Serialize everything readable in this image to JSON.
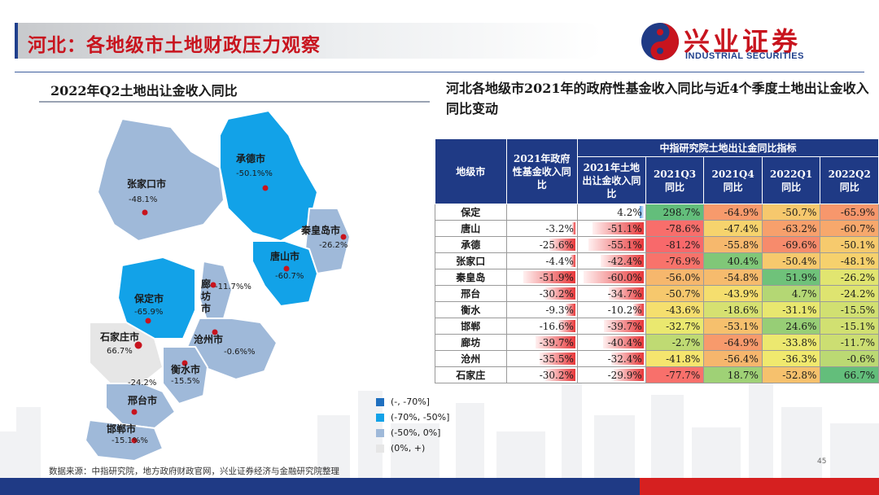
{
  "header": {
    "title": "河北：各地级市土地财政压力观察",
    "logo_cn": "兴业证券",
    "logo_en": "INDUSTRIAL SECURITIES"
  },
  "left": {
    "heading": "2022年Q2土地出让金收入同比",
    "map_regions": [
      {
        "name": "张家口市",
        "value": "-48.1%"
      },
      {
        "name": "承德市",
        "value": "-50.1%%"
      },
      {
        "name": "秦皇岛市",
        "value": "-26.2%"
      },
      {
        "name": "唐山市",
        "value": "-60.7%"
      },
      {
        "name": "廊坊市",
        "value": "-11.7%%"
      },
      {
        "name": "保定市",
        "value": "-65.9%"
      },
      {
        "name": "石家庄市",
        "value": "66.7%"
      },
      {
        "name": "沧州市",
        "value": "-0.6%%"
      },
      {
        "name": "衡水市",
        "value": "-15.5%"
      },
      {
        "name": "邢台市",
        "value": "-24.2%"
      },
      {
        "name": "邯郸市",
        "value": "-15.1%%"
      }
    ],
    "legend": [
      {
        "label": "(-, -70%]",
        "color": "#1f6fbf"
      },
      {
        "label": "(-70%, -50%]",
        "color": "#12a2e8"
      },
      {
        "label": "(-50%, 0%]",
        "color": "#9fb9d9"
      },
      {
        "label": "(0%, +)",
        "color": "#e6e6e6"
      }
    ]
  },
  "right": {
    "heading": "河北各地级市2021年的政府性基金收入同比与近4个季度土地出让金收入同比变动",
    "table": {
      "header_city": "地级市",
      "header_fund": "2021年政府性基金收入同比",
      "header_group": "中指研究院土地出让金同比指标",
      "header_land": "2021年土地出让金收入同比",
      "header_q": [
        "2021Q3同比",
        "2021Q4同比",
        "2022Q1同比",
        "2022Q2同比"
      ],
      "rows": [
        {
          "city": "保定",
          "fund": "",
          "fund_num": null,
          "land": "4.2%",
          "land_num": 4.2,
          "q": [
            "298.7%",
            "-64.9%",
            "-50.7%",
            "-65.9%"
          ],
          "q_num": [
            298.7,
            -64.9,
            -50.7,
            -65.9
          ]
        },
        {
          "city": "唐山",
          "fund": "-3.2%",
          "fund_num": -3.2,
          "land": "-51.1%",
          "land_num": -51.1,
          "q": [
            "-78.6%",
            "-47.4%",
            "-63.2%",
            "-60.7%"
          ],
          "q_num": [
            -78.6,
            -47.4,
            -63.2,
            -60.7
          ]
        },
        {
          "city": "承德",
          "fund": "-25.6%",
          "fund_num": -25.6,
          "land": "-55.1%",
          "land_num": -55.1,
          "q": [
            "-81.2%",
            "-55.8%",
            "-69.6%",
            "-50.1%"
          ],
          "q_num": [
            -81.2,
            -55.8,
            -69.6,
            -50.1
          ]
        },
        {
          "city": "张家口",
          "fund": "-4.4%",
          "fund_num": -4.4,
          "land": "-42.4%",
          "land_num": -42.4,
          "q": [
            "-76.9%",
            "40.4%",
            "-50.4%",
            "-48.1%"
          ],
          "q_num": [
            -76.9,
            40.4,
            -50.4,
            -48.1
          ]
        },
        {
          "city": "秦皇岛",
          "fund": "-51.9%",
          "fund_num": -51.9,
          "land": "-60.0%",
          "land_num": -60.0,
          "q": [
            "-56.0%",
            "-54.8%",
            "51.9%",
            "-26.2%"
          ],
          "q_num": [
            -56.0,
            -54.8,
            51.9,
            -26.2
          ]
        },
        {
          "city": "邢台",
          "fund": "-30.2%",
          "fund_num": -30.2,
          "land": "-34.7%",
          "land_num": -34.7,
          "q": [
            "-50.7%",
            "-43.9%",
            "4.7%",
            "-24.2%"
          ],
          "q_num": [
            -50.7,
            -43.9,
            4.7,
            -24.2
          ]
        },
        {
          "city": "衡水",
          "fund": "-9.3%",
          "fund_num": -9.3,
          "land": "-10.2%",
          "land_num": -10.2,
          "q": [
            "-43.6%",
            "-18.6%",
            "-31.1%",
            "-15.5%"
          ],
          "q_num": [
            -43.6,
            -18.6,
            -31.1,
            -15.5
          ]
        },
        {
          "city": "邯郸",
          "fund": "-16.6%",
          "fund_num": -16.6,
          "land": "-39.7%",
          "land_num": -39.7,
          "q": [
            "-32.7%",
            "-53.1%",
            "24.6%",
            "-15.1%"
          ],
          "q_num": [
            -32.7,
            -53.1,
            24.6,
            -15.1
          ]
        },
        {
          "city": "廊坊",
          "fund": "-39.7%",
          "fund_num": -39.7,
          "land": "-40.4%",
          "land_num": -40.4,
          "q": [
            "-2.7%",
            "-64.9%",
            "-33.8%",
            "-11.7%"
          ],
          "q_num": [
            -2.7,
            -64.9,
            -33.8,
            -11.7
          ]
        },
        {
          "city": "沧州",
          "fund": "-35.5%",
          "fund_num": -35.5,
          "land": "-32.4%",
          "land_num": -32.4,
          "q": [
            "-41.8%",
            "-56.4%",
            "-36.3%",
            "-0.6%"
          ],
          "q_num": [
            -41.8,
            -56.4,
            -36.3,
            -0.6
          ]
        },
        {
          "city": "石家庄",
          "fund": "-30.2%",
          "fund_num": -30.2,
          "land": "-29.9%",
          "land_num": -29.9,
          "q": [
            "-77.7%",
            "18.7%",
            "-52.8%",
            "66.7%"
          ],
          "q_num": [
            -77.7,
            18.7,
            -52.8,
            66.7
          ]
        }
      ]
    }
  },
  "footer": {
    "source": "数据来源：中指研究院，地方政府财政官网，兴业证券经济与金融研究院整理",
    "page": "45"
  },
  "colors": {
    "brand_red": "#c8141e",
    "brand_blue": "#1f3a85"
  }
}
